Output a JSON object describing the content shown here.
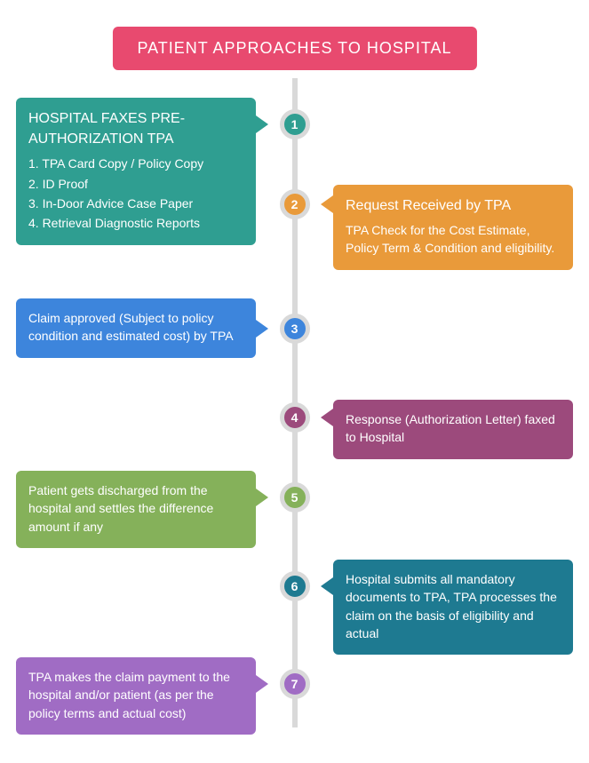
{
  "header": {
    "text": "PATIENT APPROACHES TO HOSPITAL",
    "bg": "#e84a6f"
  },
  "timeline": {
    "line_color": "#d9d9d9",
    "node_border": "#d9d9d9"
  },
  "steps": [
    {
      "num": "1",
      "node_color": "#2f9e91",
      "side": "left",
      "card_bg": "#2f9e91",
      "top_card": 110,
      "top_node": 140,
      "title": "HOSPITAL FAXES PRE-AUTHORIZATION TPA",
      "lines": [
        "1. TPA Card Copy / Policy Copy",
        "2. ID Proof",
        "3. In-Door Advice Case Paper",
        "4. Retrieval Diagnostic Reports"
      ]
    },
    {
      "num": "2",
      "node_color": "#e99a3a",
      "side": "right",
      "card_bg": "#e99a3a",
      "top_card": 208,
      "top_node": 230,
      "title": "Request Received by TPA",
      "lines": [
        "TPA Check for the Cost Estimate, Policy Term & Condition and eligibility."
      ]
    },
    {
      "num": "3",
      "node_color": "#3d85dc",
      "side": "left",
      "card_bg": "#3d85dc",
      "top_card": 336,
      "top_node": 370,
      "title": "",
      "lines": [
        "Claim approved (Subject to policy condition and estimated cost) by TPA"
      ]
    },
    {
      "num": "4",
      "node_color": "#9c4a7c",
      "side": "right",
      "card_bg": "#9c4a7c",
      "top_card": 450,
      "top_node": 470,
      "title": "",
      "lines": [
        "Response (Authorization Letter) faxed to Hospital"
      ]
    },
    {
      "num": "5",
      "node_color": "#85b15a",
      "side": "left",
      "card_bg": "#85b15a",
      "top_card": 530,
      "top_node": 560,
      "title": "",
      "lines": [
        "Patient gets discharged from the hospital and settles the difference amount if any"
      ]
    },
    {
      "num": "6",
      "node_color": "#1e7a91",
      "side": "right",
      "card_bg": "#1e7a91",
      "top_card": 630,
      "top_node": 660,
      "title": "",
      "lines": [
        "Hospital submits all mandatory documents to TPA, TPA processes the claim on the basis of eligibility and actual"
      ]
    },
    {
      "num": "7",
      "node_color": "#a06cc4",
      "side": "left",
      "card_bg": "#a06cc4",
      "top_card": 740,
      "top_node": 770,
      "title": "",
      "lines": [
        "TPA makes the claim payment to the hospital and/or patient (as per the policy terms and actual cost)"
      ]
    }
  ]
}
